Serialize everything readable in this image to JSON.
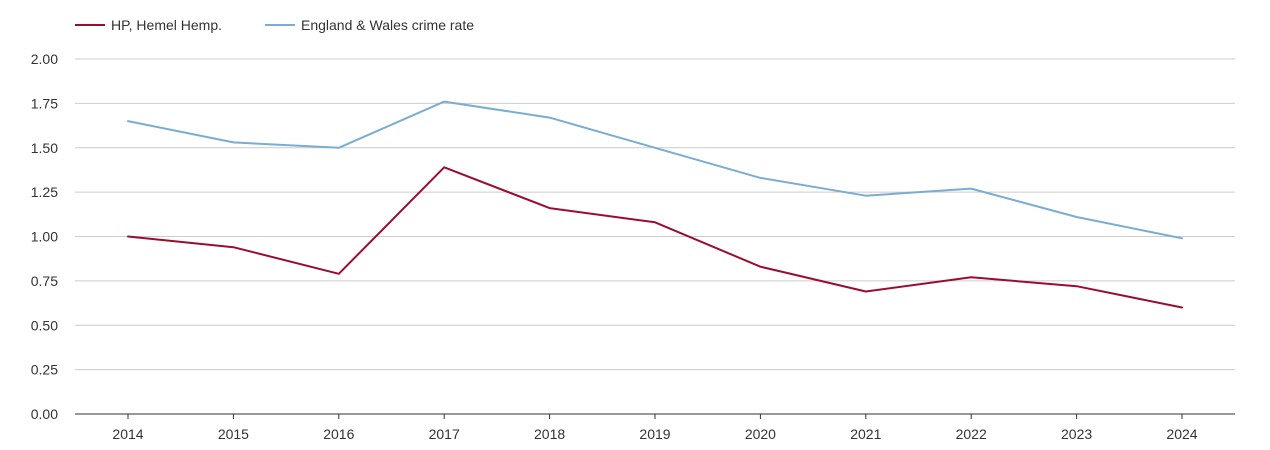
{
  "chart_data": {
    "type": "line",
    "title": "",
    "xlabel": "",
    "ylabel": "",
    "x": [
      "2014",
      "2015",
      "2016",
      "2017",
      "2018",
      "2019",
      "2020",
      "2021",
      "2022",
      "2023",
      "2024"
    ],
    "y_ticks": [
      "0.00",
      "0.25",
      "0.50",
      "0.75",
      "1.00",
      "1.25",
      "1.50",
      "1.75",
      "2.00"
    ],
    "ylim": [
      0,
      2
    ],
    "grid": true,
    "legend_position": "top-left",
    "series": [
      {
        "name": "HP, Hemel Hemp.",
        "color": "#9b0d2e",
        "values": [
          1.0,
          0.94,
          0.79,
          1.39,
          1.16,
          1.08,
          0.83,
          0.69,
          0.77,
          0.72,
          0.6
        ]
      },
      {
        "name": "England & Wales crime rate",
        "color": "#7aadd1",
        "values": [
          1.65,
          1.53,
          1.5,
          1.76,
          1.67,
          1.5,
          1.33,
          1.23,
          1.27,
          1.11,
          0.99
        ]
      }
    ]
  }
}
